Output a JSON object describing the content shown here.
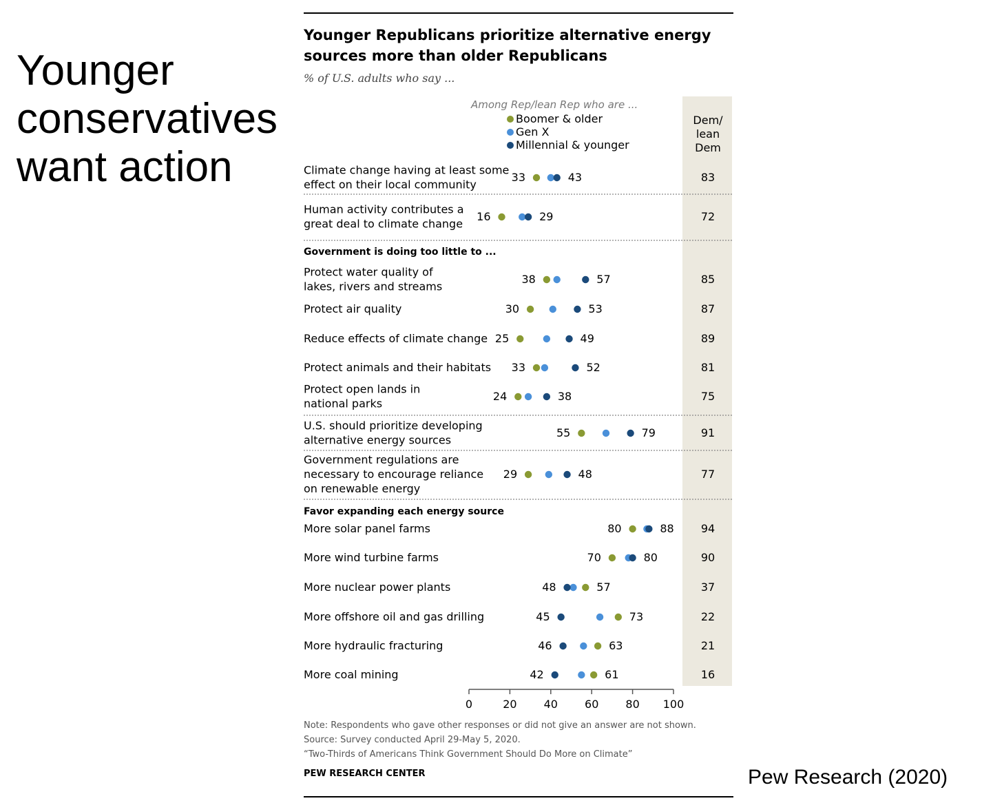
{
  "slide": {
    "title_lines": [
      "Younger",
      "conservatives",
      "want action"
    ],
    "credit": "Pew Research (2020)"
  },
  "chart": {
    "title_lines": [
      "Younger Republicans prioritize alternative energy",
      "sources more than older Republicans"
    ],
    "subtitle": "% of U.S. adults who say ...",
    "notes": [
      "Note: Respondents who gave other responses or did not give an answer are not shown.",
      "Source: Survey conducted April 29-May 5, 2020.",
      "“Two-Thirds of Americans Think Government Should Do More on Climate”"
    ],
    "org": "PEW RESEARCH CENTER"
  },
  "colors": {
    "boomer": "#8a9a33",
    "genx": "#4a90d9",
    "millennial": "#1b4a7a",
    "dem_column_bg": "#ece9df",
    "text": "#000000",
    "muted": "#777777"
  },
  "chart_data": {
    "type": "scatter",
    "legend_heading": "Among Rep/lean Rep who are ...",
    "dem_column_header": [
      "Dem/",
      "lean",
      "Dem"
    ],
    "series": [
      {
        "key": "boomer",
        "name": "Boomer & older"
      },
      {
        "key": "genx",
        "name": "Gen X"
      },
      {
        "key": "millennial",
        "name": "Millennial & younger"
      }
    ],
    "xlim": [
      0,
      100
    ],
    "x_ticks": [
      0,
      20,
      40,
      60,
      80,
      100
    ],
    "rows": [
      {
        "kind": "item",
        "label": [
          "Climate change having at least some",
          "effect on their local community"
        ],
        "boomer": 33,
        "genx": 40,
        "millennial": 43,
        "dem": 83,
        "sep_after": true
      },
      {
        "kind": "item",
        "label": [
          "Human activity contributes a",
          "great deal to climate change"
        ],
        "boomer": 16,
        "genx": 26,
        "millennial": 29,
        "dem": 72,
        "sep_after": true
      },
      {
        "kind": "header",
        "label": [
          "Government is doing too little to ..."
        ]
      },
      {
        "kind": "item",
        "label": [
          "Protect water quality of",
          "lakes, rivers and streams"
        ],
        "boomer": 38,
        "genx": 43,
        "millennial": 57,
        "dem": 85
      },
      {
        "kind": "item",
        "label": [
          "Protect air quality"
        ],
        "boomer": 30,
        "genx": 41,
        "millennial": 53,
        "dem": 87
      },
      {
        "kind": "item",
        "label": [
          "Reduce effects of climate change"
        ],
        "boomer": 25,
        "genx": 38,
        "millennial": 49,
        "dem": 89
      },
      {
        "kind": "item",
        "label": [
          "Protect animals and their habitats"
        ],
        "boomer": 33,
        "genx": 37,
        "millennial": 52,
        "dem": 81
      },
      {
        "kind": "item",
        "label": [
          "Protect open lands in",
          "national parks"
        ],
        "boomer": 24,
        "genx": 29,
        "millennial": 38,
        "dem": 75,
        "sep_after": true
      },
      {
        "kind": "item",
        "label": [
          "U.S. should prioritize developing",
          "alternative energy sources"
        ],
        "boomer": 55,
        "genx": 67,
        "millennial": 79,
        "dem": 91,
        "sep_after": true
      },
      {
        "kind": "item",
        "label": [
          "Government regulations are",
          "necessary to encourage reliance",
          "on renewable energy"
        ],
        "boomer": 29,
        "genx": 39,
        "millennial": 48,
        "dem": 77,
        "sep_after": true
      },
      {
        "kind": "header",
        "label": [
          "Favor expanding each energy source"
        ]
      },
      {
        "kind": "item",
        "label": [
          "More solar panel farms"
        ],
        "boomer": 80,
        "genx": 87,
        "millennial": 88,
        "dem": 94
      },
      {
        "kind": "item",
        "label": [
          "More wind turbine farms"
        ],
        "boomer": 70,
        "genx": 78,
        "millennial": 80,
        "dem": 90
      },
      {
        "kind": "item",
        "label": [
          "More nuclear power plants"
        ],
        "boomer": 57,
        "genx": 51,
        "millennial": 48,
        "dem": 37
      },
      {
        "kind": "item",
        "label": [
          "More offshore oil and gas drilling"
        ],
        "boomer": 73,
        "genx": 64,
        "millennial": 45,
        "dem": 22
      },
      {
        "kind": "item",
        "label": [
          "More hydraulic fracturing"
        ],
        "boomer": 63,
        "genx": 56,
        "millennial": 46,
        "dem": 21
      },
      {
        "kind": "item",
        "label": [
          "More coal mining"
        ],
        "boomer": 61,
        "genx": 55,
        "millennial": 42,
        "dem": 16
      }
    ]
  }
}
